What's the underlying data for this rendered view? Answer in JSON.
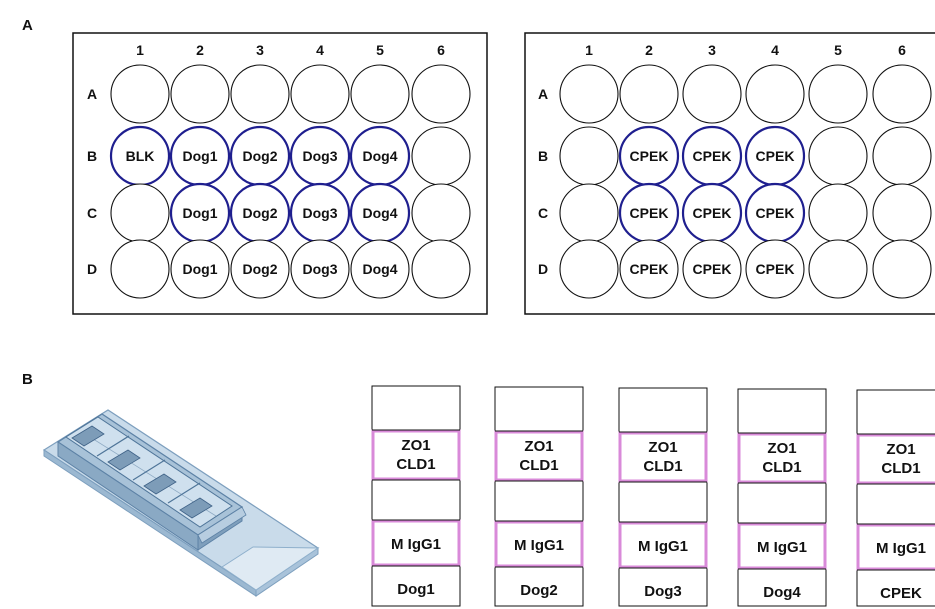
{
  "panel_a": {
    "label": "A",
    "plates": [
      {
        "columns": [
          "1",
          "2",
          "3",
          "4",
          "5",
          "6"
        ],
        "rows": [
          {
            "label": "A",
            "wells": [
              {
                "text": "",
                "outlined": false
              },
              {
                "text": "",
                "outlined": false
              },
              {
                "text": "",
                "outlined": false
              },
              {
                "text": "",
                "outlined": false
              },
              {
                "text": "",
                "outlined": false
              },
              {
                "text": "",
                "outlined": false
              }
            ]
          },
          {
            "label": "B",
            "wells": [
              {
                "text": "BLK",
                "outlined": true
              },
              {
                "text": "Dog1",
                "outlined": true
              },
              {
                "text": "Dog2",
                "outlined": true
              },
              {
                "text": "Dog3",
                "outlined": true
              },
              {
                "text": "Dog4",
                "outlined": true
              },
              {
                "text": "",
                "outlined": false
              }
            ]
          },
          {
            "label": "C",
            "wells": [
              {
                "text": "",
                "outlined": false
              },
              {
                "text": "Dog1",
                "outlined": true
              },
              {
                "text": "Dog2",
                "outlined": true
              },
              {
                "text": "Dog3",
                "outlined": true
              },
              {
                "text": "Dog4",
                "outlined": true
              },
              {
                "text": "",
                "outlined": false
              }
            ]
          },
          {
            "label": "D",
            "wells": [
              {
                "text": "",
                "outlined": false
              },
              {
                "text": "Dog1",
                "outlined": false
              },
              {
                "text": "Dog2",
                "outlined": false
              },
              {
                "text": "Dog3",
                "outlined": false
              },
              {
                "text": "Dog4",
                "outlined": false
              },
              {
                "text": "",
                "outlined": false
              }
            ]
          }
        ]
      },
      {
        "columns": [
          "1",
          "2",
          "3",
          "4",
          "5",
          "6"
        ],
        "rows": [
          {
            "label": "A",
            "wells": [
              {
                "text": "",
                "outlined": false
              },
              {
                "text": "",
                "outlined": false
              },
              {
                "text": "",
                "outlined": false
              },
              {
                "text": "",
                "outlined": false
              },
              {
                "text": "",
                "outlined": false
              },
              {
                "text": "",
                "outlined": false
              }
            ]
          },
          {
            "label": "B",
            "wells": [
              {
                "text": "",
                "outlined": false
              },
              {
                "text": "CPEK",
                "outlined": true
              },
              {
                "text": "CPEK",
                "outlined": true
              },
              {
                "text": "CPEK",
                "outlined": true
              },
              {
                "text": "",
                "outlined": false
              },
              {
                "text": "",
                "outlined": false
              }
            ]
          },
          {
            "label": "C",
            "wells": [
              {
                "text": "",
                "outlined": false
              },
              {
                "text": "CPEK",
                "outlined": true
              },
              {
                "text": "CPEK",
                "outlined": true
              },
              {
                "text": "CPEK",
                "outlined": true
              },
              {
                "text": "",
                "outlined": false
              },
              {
                "text": "",
                "outlined": false
              }
            ]
          },
          {
            "label": "D",
            "wells": [
              {
                "text": "",
                "outlined": false
              },
              {
                "text": "CPEK",
                "outlined": false
              },
              {
                "text": "CPEK",
                "outlined": false
              },
              {
                "text": "CPEK",
                "outlined": false
              },
              {
                "text": "",
                "outlined": false
              },
              {
                "text": "",
                "outlined": false
              }
            ]
          }
        ]
      }
    ]
  },
  "panel_b": {
    "label": "B",
    "strips": [
      {
        "stain_top": [
          "ZO1",
          "CLD1"
        ],
        "stain_bottom": "M IgG1",
        "sample": "Dog1"
      },
      {
        "stain_top": [
          "ZO1",
          "CLD1"
        ],
        "stain_bottom": "M IgG1",
        "sample": "Dog2"
      },
      {
        "stain_top": [
          "ZO1",
          "CLD1"
        ],
        "stain_bottom": "M IgG1",
        "sample": "Dog3"
      },
      {
        "stain_top": [
          "ZO1",
          "CLD1"
        ],
        "stain_bottom": "M IgG1",
        "sample": "Dog4"
      },
      {
        "stain_top": [
          "ZO1",
          "CLD1"
        ],
        "stain_bottom": "M IgG1",
        "sample": "CPEK"
      }
    ]
  },
  "colors": {
    "well_outline_highlight": "#1f1f8f",
    "stain_box_border": "#d98ad9",
    "slide_blue": "#8fb0cc"
  }
}
